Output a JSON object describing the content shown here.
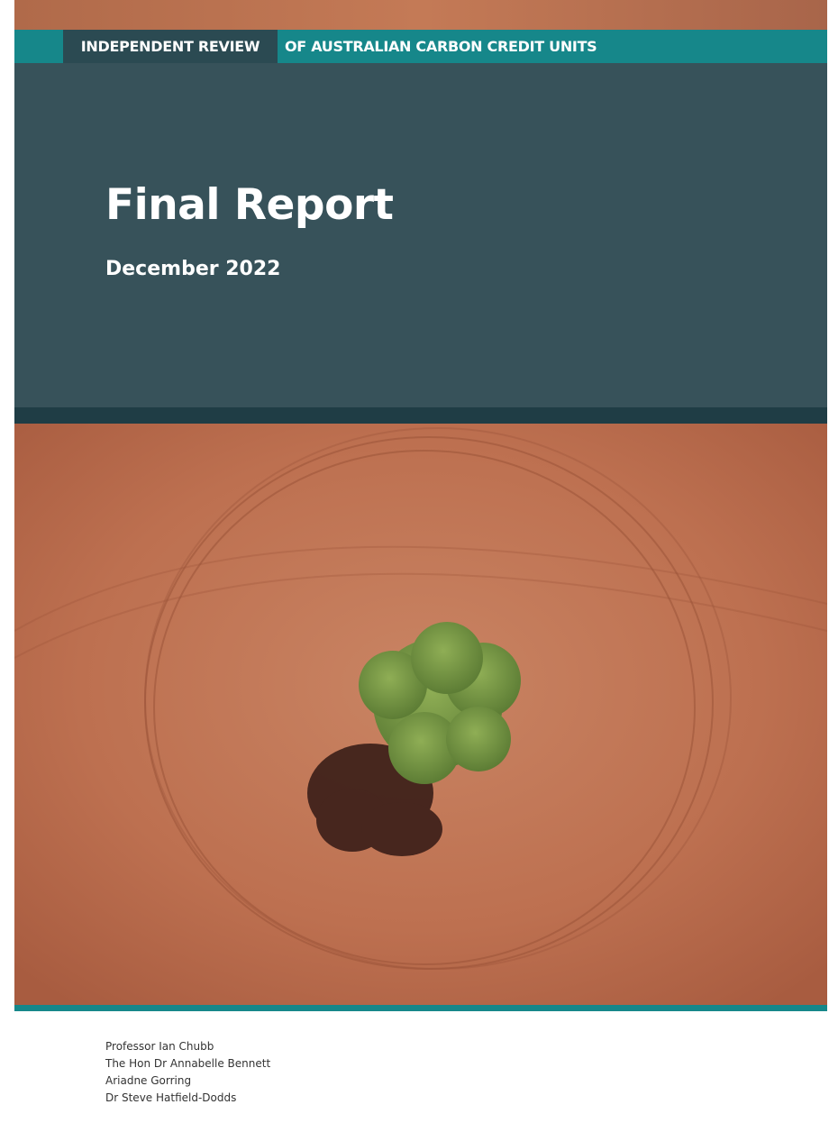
{
  "header": {
    "series_label_bold": "INDEPENDENT REVIEW",
    "series_label": "OF AUSTRALIAN CARBON CREDIT UNITS"
  },
  "title": "Final Report",
  "date": "December 2022",
  "authors": [
    "Professor Ian Chubb",
    "The Hon Dr Annabelle Bennett",
    "Ariadne Gorring",
    "Dr Steve Hatfield-Dodds"
  ]
}
